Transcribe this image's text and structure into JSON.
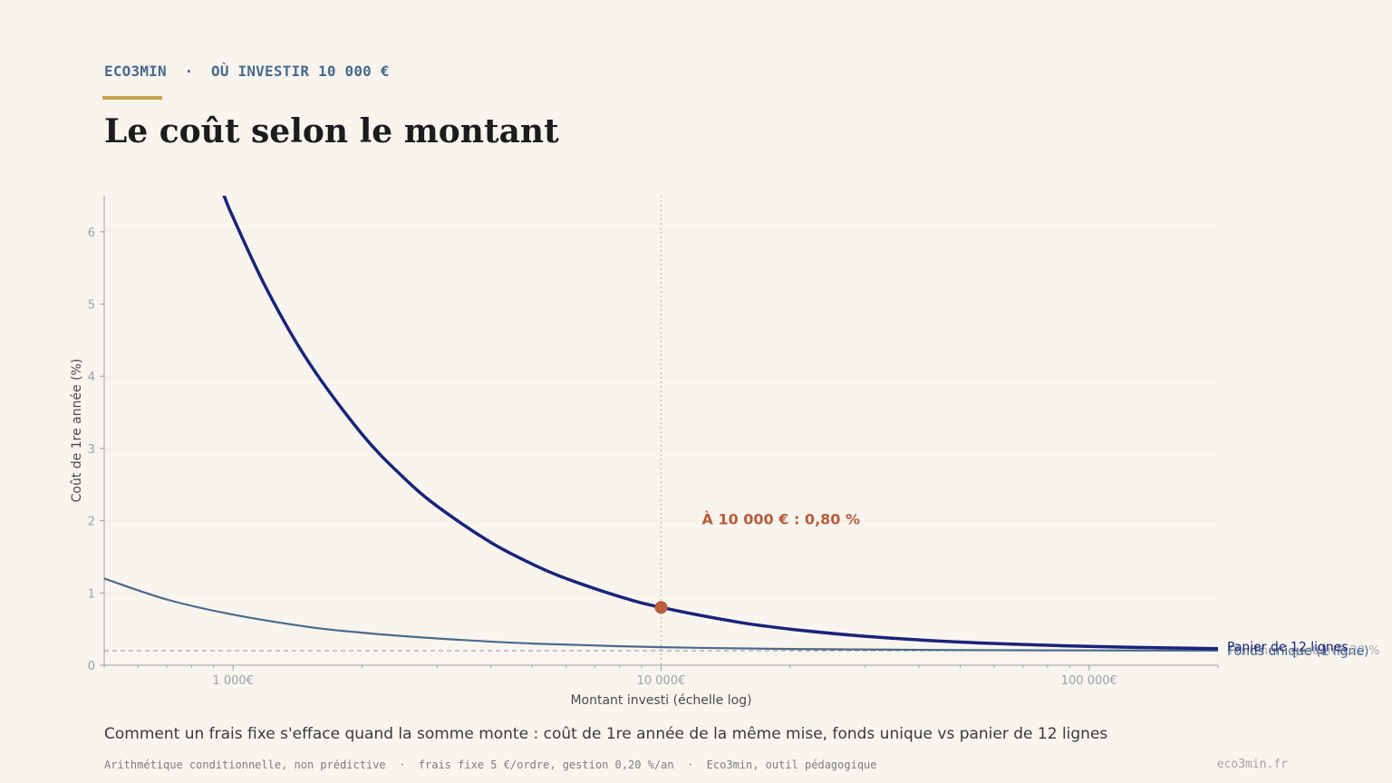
{
  "header": {
    "kicker": "ECO3MIN  ·  OÙ INVESTIR 10 000 €",
    "title": "Le coût selon le montant"
  },
  "caption": "Comment un frais fixe s'efface quand la somme monte : coût de 1re année de la même mise, fonds unique vs panier de 12 lignes",
  "footnote": "Arithmétique conditionnelle, non prédictive  ·  frais fixe 5 €/ordre, gestion 0,20 %/an  ·  Eco3min, outil pédagogique",
  "site": "eco3min.fr",
  "colors": {
    "basket": "#1b237a",
    "single": "#4a6a8c",
    "floor": "#9a9aa6",
    "highlight": "#b85c3c",
    "grid": "#efece6",
    "axis": "#9aa0a6",
    "tick_text": "#9aa0a6",
    "axis_label": "#4a4a4a"
  },
  "chart_data": {
    "type": "line",
    "x_scale": "log",
    "xlim": [
      500,
      200000
    ],
    "ylim": [
      0,
      6.5
    ],
    "xlabel": "Montant investi (échelle log)",
    "ylabel": "Coût de 1re année (%)",
    "x_ticks": [
      {
        "value": 1000,
        "label": "1 000€"
      },
      {
        "value": 10000,
        "label": "10 000€"
      },
      {
        "value": 100000,
        "label": "100 000€"
      }
    ],
    "y_ticks": [
      0,
      1,
      2,
      3,
      4,
      5,
      6
    ],
    "grid": "horizontal",
    "series": [
      {
        "name": "Panier de 12 lignes",
        "x": [
          950,
          1000,
          1200,
          1500,
          2000,
          2500,
          3000,
          4000,
          5000,
          6000,
          8000,
          10000,
          15000,
          20000,
          30000,
          50000,
          100000,
          200000
        ],
        "y": [
          6.52,
          6.2,
          5.2,
          4.2,
          3.2,
          2.6,
          2.2,
          1.7,
          1.4,
          1.2,
          0.95,
          0.8,
          0.6,
          0.5,
          0.4,
          0.32,
          0.26,
          0.23
        ]
      },
      {
        "name": "Fonds unique (1 ligne)",
        "x": [
          500,
          700,
          1000,
          1500,
          2000,
          3000,
          5000,
          10000,
          20000,
          50000,
          100000,
          200000
        ],
        "y": [
          1.2,
          0.91,
          0.7,
          0.53,
          0.45,
          0.37,
          0.3,
          0.25,
          0.225,
          0.21,
          0.205,
          0.2025
        ]
      }
    ],
    "reference_line": {
      "y": 0.2,
      "label": "Plancher : gestion 0,20 %"
    },
    "marker": {
      "x": 10000,
      "label": "À 10 000 € : 0,80 %"
    },
    "highlight_point": {
      "x": 10000,
      "y": 0.8
    }
  }
}
